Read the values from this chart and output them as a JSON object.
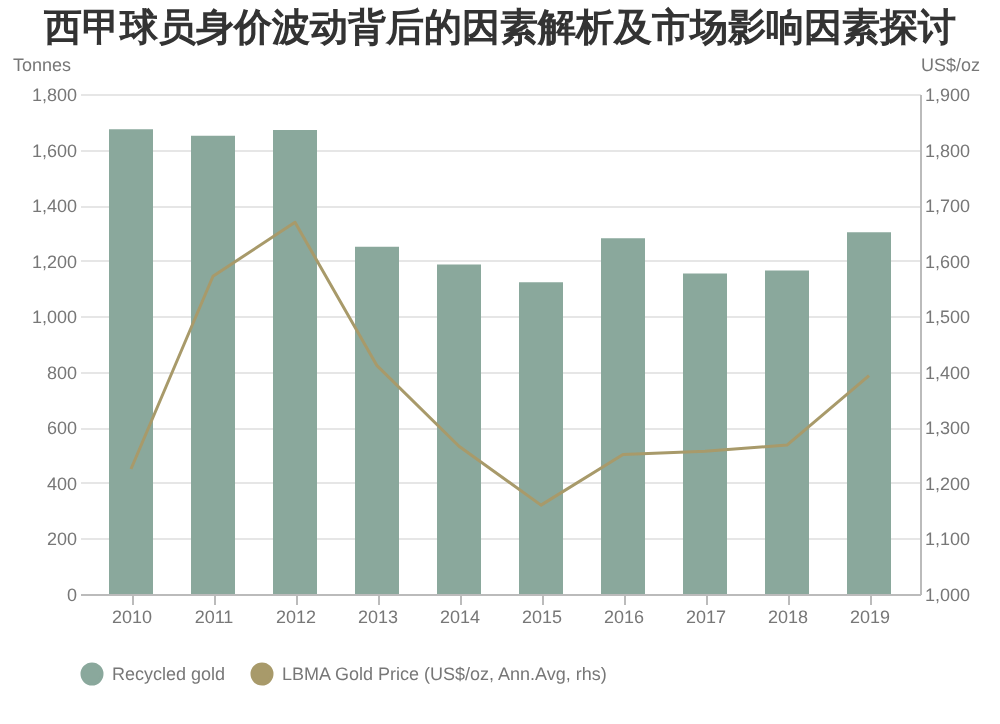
{
  "chart_data": {
    "type": "bar",
    "title": "西甲球员身价波动背后的因素解析及市场影响因素探讨",
    "categories": [
      "2010",
      "2011",
      "2012",
      "2013",
      "2014",
      "2015",
      "2016",
      "2017",
      "2018",
      "2019"
    ],
    "series": [
      {
        "name": "Recycled gold",
        "color": "#8aa89c",
        "values": [
          1673,
          1650,
          1670,
          1250,
          1186,
          1122,
          1281,
          1154,
          1165,
          1302
        ]
      },
      {
        "name": "LBMA Gold Price (US$/oz, Ann.Avg, rhs)",
        "type": "line",
        "axis": "y2",
        "color": "#a89a6a",
        "values": [
          1225,
          1572,
          1669,
          1411,
          1266,
          1160,
          1251,
          1257,
          1268,
          1393
        ]
      }
    ],
    "ylabel": "Tonnes",
    "y2label": "US$/oz",
    "ylim": [
      0,
      1800
    ],
    "yticks": [
      0,
      200,
      400,
      600,
      800,
      {
        "value": 1000,
        "label": "1,000"
      },
      {
        "value": 1200,
        "label": "1,200"
      },
      {
        "value": 1400,
        "label": "1,400"
      },
      {
        "value": 1600,
        "label": "1,600"
      },
      {
        "value": 1800,
        "label": "1,800"
      }
    ],
    "y2lim": [
      1000,
      1900
    ],
    "y2ticks": [
      {
        "value": 1000,
        "label": "1,000"
      },
      {
        "value": 1100,
        "label": "1,100"
      },
      {
        "value": 1200,
        "label": "1,200"
      },
      {
        "value": 1300,
        "label": "1,300"
      },
      {
        "value": 1400,
        "label": "1,400"
      },
      {
        "value": 1500,
        "label": "1,500"
      },
      {
        "value": 1600,
        "label": "1,600"
      },
      {
        "value": 1700,
        "label": "1,700"
      },
      {
        "value": 1800,
        "label": "1,800"
      },
      {
        "value": 1900,
        "label": "1,900"
      }
    ],
    "grid": "y",
    "legend": "bottom",
    "marker": "none"
  }
}
